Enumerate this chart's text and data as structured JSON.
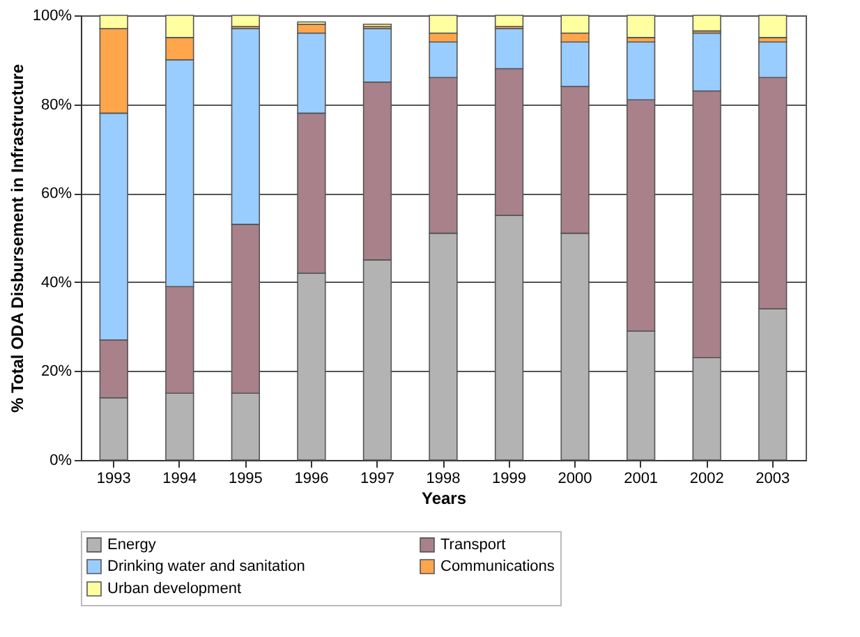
{
  "chart_data": {
    "type": "bar",
    "stacked": true,
    "xlabel": "Years",
    "ylabel": "% Total ODA Disbursement in Infrastructure",
    "categories": [
      "1993",
      "1994",
      "1995",
      "1996",
      "1997",
      "1998",
      "1999",
      "2000",
      "2001",
      "2002",
      "2003"
    ],
    "series": [
      {
        "name": "Energy",
        "color": "#b3b3b3",
        "values": [
          14,
          15,
          15,
          42,
          45,
          51,
          55,
          51,
          29,
          23,
          34
        ]
      },
      {
        "name": "Transport",
        "color": "#a8818a",
        "values": [
          13,
          24,
          38,
          36,
          40,
          35,
          33,
          33,
          52,
          60,
          52
        ]
      },
      {
        "name": "Drinking water and sanitation",
        "color": "#99ccff",
        "values": [
          51,
          51,
          44,
          18,
          12,
          8,
          9,
          10,
          13,
          13,
          8
        ]
      },
      {
        "name": "Communications",
        "color": "#ffa64d",
        "values": [
          19,
          5,
          0.5,
          2,
          0.5,
          2,
          0.5,
          2,
          1,
          0.5,
          1
        ]
      },
      {
        "name": "Urban development",
        "color": "#ffffa0",
        "values": [
          3,
          5,
          2.5,
          0.5,
          0.5,
          4,
          2.5,
          4,
          5,
          3.5,
          5
        ]
      }
    ],
    "ylim": [
      0,
      100
    ],
    "yticks": [
      {
        "value": 0,
        "label": "0%"
      },
      {
        "value": 20,
        "label": "20%"
      },
      {
        "value": 40,
        "label": "40%"
      },
      {
        "value": 60,
        "label": "60%"
      },
      {
        "value": 80,
        "label": "80%"
      },
      {
        "value": 100,
        "label": "100%"
      }
    ],
    "grid": "y",
    "legend": "bottom"
  }
}
